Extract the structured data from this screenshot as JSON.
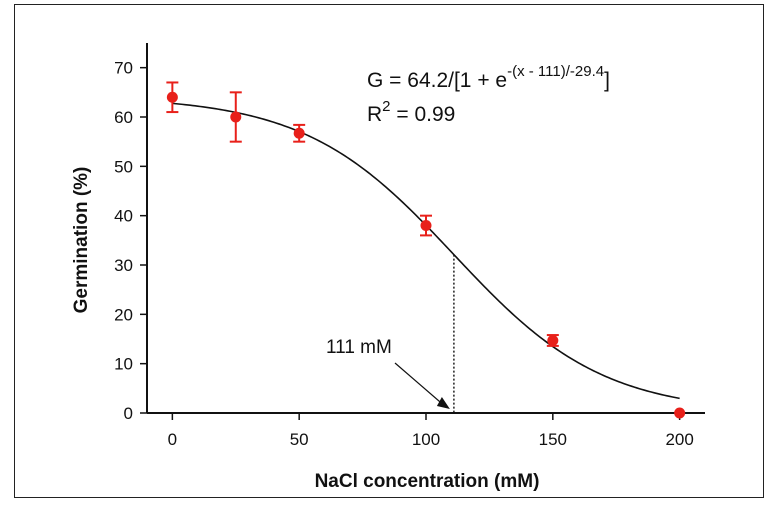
{
  "chart_data": {
    "type": "scatter",
    "xlabel": "NaCl concentration (mM)",
    "ylabel": "Germination (%)",
    "xlim": [
      -10,
      210
    ],
    "ylim": [
      0,
      75
    ],
    "x_ticks": [
      0,
      50,
      100,
      150,
      200
    ],
    "x_tick_labels": [
      "0",
      "50",
      "100",
      "150",
      "200"
    ],
    "y_ticks": [
      0,
      10,
      20,
      30,
      40,
      50,
      60,
      70
    ],
    "y_tick_labels": [
      "0",
      "10",
      "20",
      "30",
      "40",
      "50",
      "60",
      "70"
    ],
    "grid": false,
    "points": [
      {
        "x": 0,
        "y": 64,
        "err": 3
      },
      {
        "x": 25,
        "y": 60,
        "err": 5
      },
      {
        "x": 50,
        "y": 56.7,
        "err": 1.7
      },
      {
        "x": 100,
        "y": 38,
        "err": 2
      },
      {
        "x": 150,
        "y": 14.7,
        "err": 1.1
      },
      {
        "x": 200,
        "y": 0,
        "err": 0
      }
    ],
    "fit": {
      "a": 64.2,
      "x0": 111,
      "b": -29.4,
      "x_range": [
        0,
        200
      ],
      "equation_prefix": "G = 64.2/[1 + e",
      "equation_exponent": "-(x - 111)/-29.4",
      "equation_suffix": "]",
      "r2_prefix": "R",
      "r2_sup": "2",
      "r2_suffix": " = 0.99"
    },
    "annotation": {
      "x": 111,
      "label": "111 mM"
    },
    "colors": {
      "marker": "#e8201a",
      "curve": "#111111",
      "axis": "#111111"
    }
  }
}
